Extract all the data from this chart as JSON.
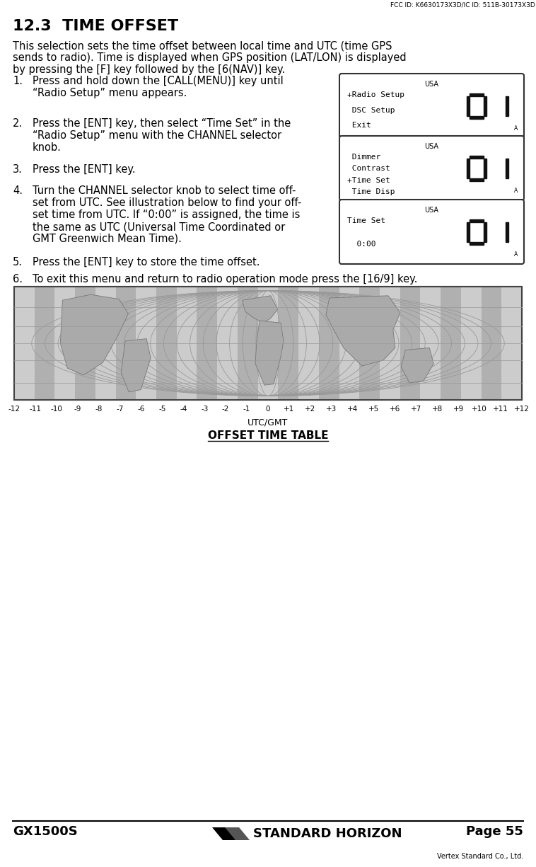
{
  "page_bg": "#ffffff",
  "fcc_text": "FCC ID: K6630173X3D/IC ID: 511B-30173X3D",
  "section_title": "12.3  TIME OFFSET",
  "body_text_lines": [
    "This selection sets the time offset between local time and UTC (time GPS",
    "sends to radio). Time is displayed when GPS position (LAT/LON) is displayed",
    "by pressing the [F] key followed by the [6(NAV)] key."
  ],
  "steps": [
    [
      "1.",
      "Press and hold down the [CALL(MENU)] key until\n“Radio Setup” menu appears."
    ],
    [
      "2.",
      "Press the [ENT] key, then select “Time Set” in the\n“Radio Setup” menu with the CHANNEL selector\nknob."
    ],
    [
      "3.",
      "Press the [ENT] key."
    ],
    [
      "4.",
      "Turn the CHANNEL selector knob to select time off-\nset from UTC. See illustration below to find your off-\nset time from UTC. If “0:00” is assigned, the time is\nthe same as UTC (Universal Time Coordinated or\nGMT Greenwich Mean Time)."
    ],
    [
      "5.",
      "Press the [ENT] key to store the time offset."
    ],
    [
      "6.",
      "To exit this menu and return to radio operation mode press the [16/9] key."
    ]
  ],
  "display_screens": [
    {
      "label": "USA",
      "lines": [
        "+Radio Setup",
        " DSC Setup",
        " Exit"
      ],
      "highlight_line": 0
    },
    {
      "label": "USA",
      "lines": [
        " Dimmer",
        " Contrast",
        "+Time Set",
        " Time Disp"
      ],
      "highlight_line": 2
    },
    {
      "label": "USA",
      "lines": [
        "Time Set",
        "  0:00"
      ],
      "highlight_line": 0
    }
  ],
  "map_label": "UTC/GMT",
  "table_title": "OFFSET TIME TABLE",
  "offset_values": [
    "-12",
    "-11",
    "-10",
    "-9",
    "-8",
    "-7",
    "-6",
    "-5",
    "-4",
    "-3",
    "-2",
    "-1",
    "0",
    "+1",
    "+2",
    "+3",
    "+4",
    "+5",
    "+6",
    "+7",
    "+8",
    "+9",
    "+10",
    "+11",
    "+12"
  ],
  "footer_left": "GX1500S",
  "footer_center": "STANDARD HORIZON",
  "footer_right": "Page 55",
  "vertex_text": "Vertex Standard Co., Ltd."
}
